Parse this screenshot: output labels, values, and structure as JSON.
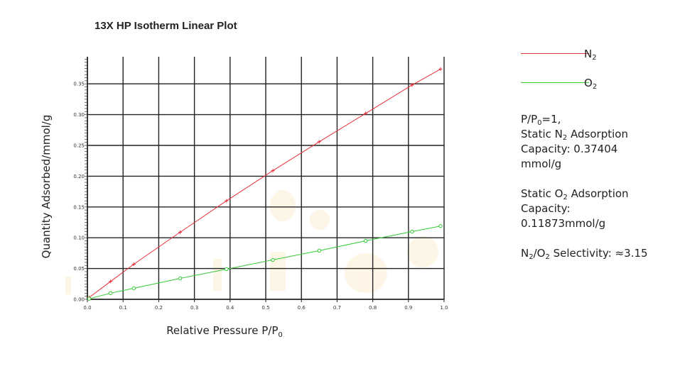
{
  "chart_data": {
    "type": "line",
    "title": "13X HP Isotherm Linear Plot",
    "xlabel": "Relative Pressure P/P0",
    "xlabel_text": "Relative Pressure P/P",
    "xlabel_sub": "0",
    "ylabel": "Quantity Adsorbed/mmol/g",
    "xlim": [
      0.0,
      1.0
    ],
    "ylim": [
      0.0,
      0.36
    ],
    "x_ticks": [
      "0.0",
      "0.1",
      "0.2",
      "0.3",
      "0.4",
      "0.5",
      "0.6",
      "0.7",
      "0.8",
      "0.9",
      "1.0"
    ],
    "y_ticks": [
      "0.00",
      "0.05",
      "0.10",
      "0.15",
      "0.20",
      "0.25",
      "0.30",
      "0.35"
    ],
    "grid": true,
    "legend_position": "right",
    "series": [
      {
        "name": "N2",
        "name_main": "N",
        "name_sub": "2",
        "color": "#e8303a",
        "marker": "plus",
        "x": [
          0.005,
          0.065,
          0.13,
          0.26,
          0.39,
          0.52,
          0.65,
          0.78,
          0.91,
          0.99
        ],
        "y": [
          0.003,
          0.029,
          0.057,
          0.109,
          0.16,
          0.209,
          0.256,
          0.302,
          0.348,
          0.374
        ]
      },
      {
        "name": "O2",
        "name_main": "O",
        "name_sub": "2",
        "color": "#33cc33",
        "marker": "circle",
        "x": [
          0.005,
          0.065,
          0.13,
          0.26,
          0.39,
          0.52,
          0.65,
          0.78,
          0.91,
          0.99
        ],
        "y": [
          0.001,
          0.01,
          0.018,
          0.034,
          0.049,
          0.064,
          0.079,
          0.095,
          0.11,
          0.119
        ]
      }
    ]
  },
  "annotations": {
    "pressure_line": {
      "p": "P/P",
      "sub": "0",
      "rest": "=1,"
    },
    "n2_line1": {
      "pre": "Static N",
      "sub": "2",
      "post": " Adsorption"
    },
    "n2_line2": "Capacity: 0.37404",
    "n2_line3": "mmol/g",
    "o2_line1": {
      "pre": "Static O",
      "sub": "2",
      "post": " Adsorption"
    },
    "o2_line2": "Capacity:",
    "o2_line3": "0.11873mmol/g",
    "selectivity": {
      "a": "N",
      "a_sub": "2",
      "slash": "/O",
      "b_sub": "2",
      "rest": " Selectivity: ≈3.15"
    }
  }
}
